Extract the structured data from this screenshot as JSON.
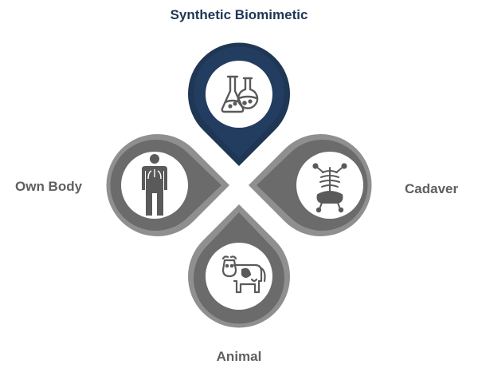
{
  "colors": {
    "top_outer": "#1f3655",
    "top_inner": "#223d60",
    "gray_outer": "#8f8f8f",
    "gray_inner": "#6b6b6b",
    "circle": "#ffffff",
    "icon": "#5a5a5a",
    "label_top": "#1f3655",
    "label_gray": "#5f5f5f"
  },
  "petals": [
    {
      "id": "top",
      "label": "Synthetic Biomimetic",
      "icon": "flask-icon"
    },
    {
      "id": "left",
      "label": "Own Body",
      "icon": "human-body-icon"
    },
    {
      "id": "right",
      "label": "Cadaver",
      "icon": "skeleton-icon"
    },
    {
      "id": "bottom",
      "label": "Animal",
      "icon": "cow-icon"
    }
  ]
}
